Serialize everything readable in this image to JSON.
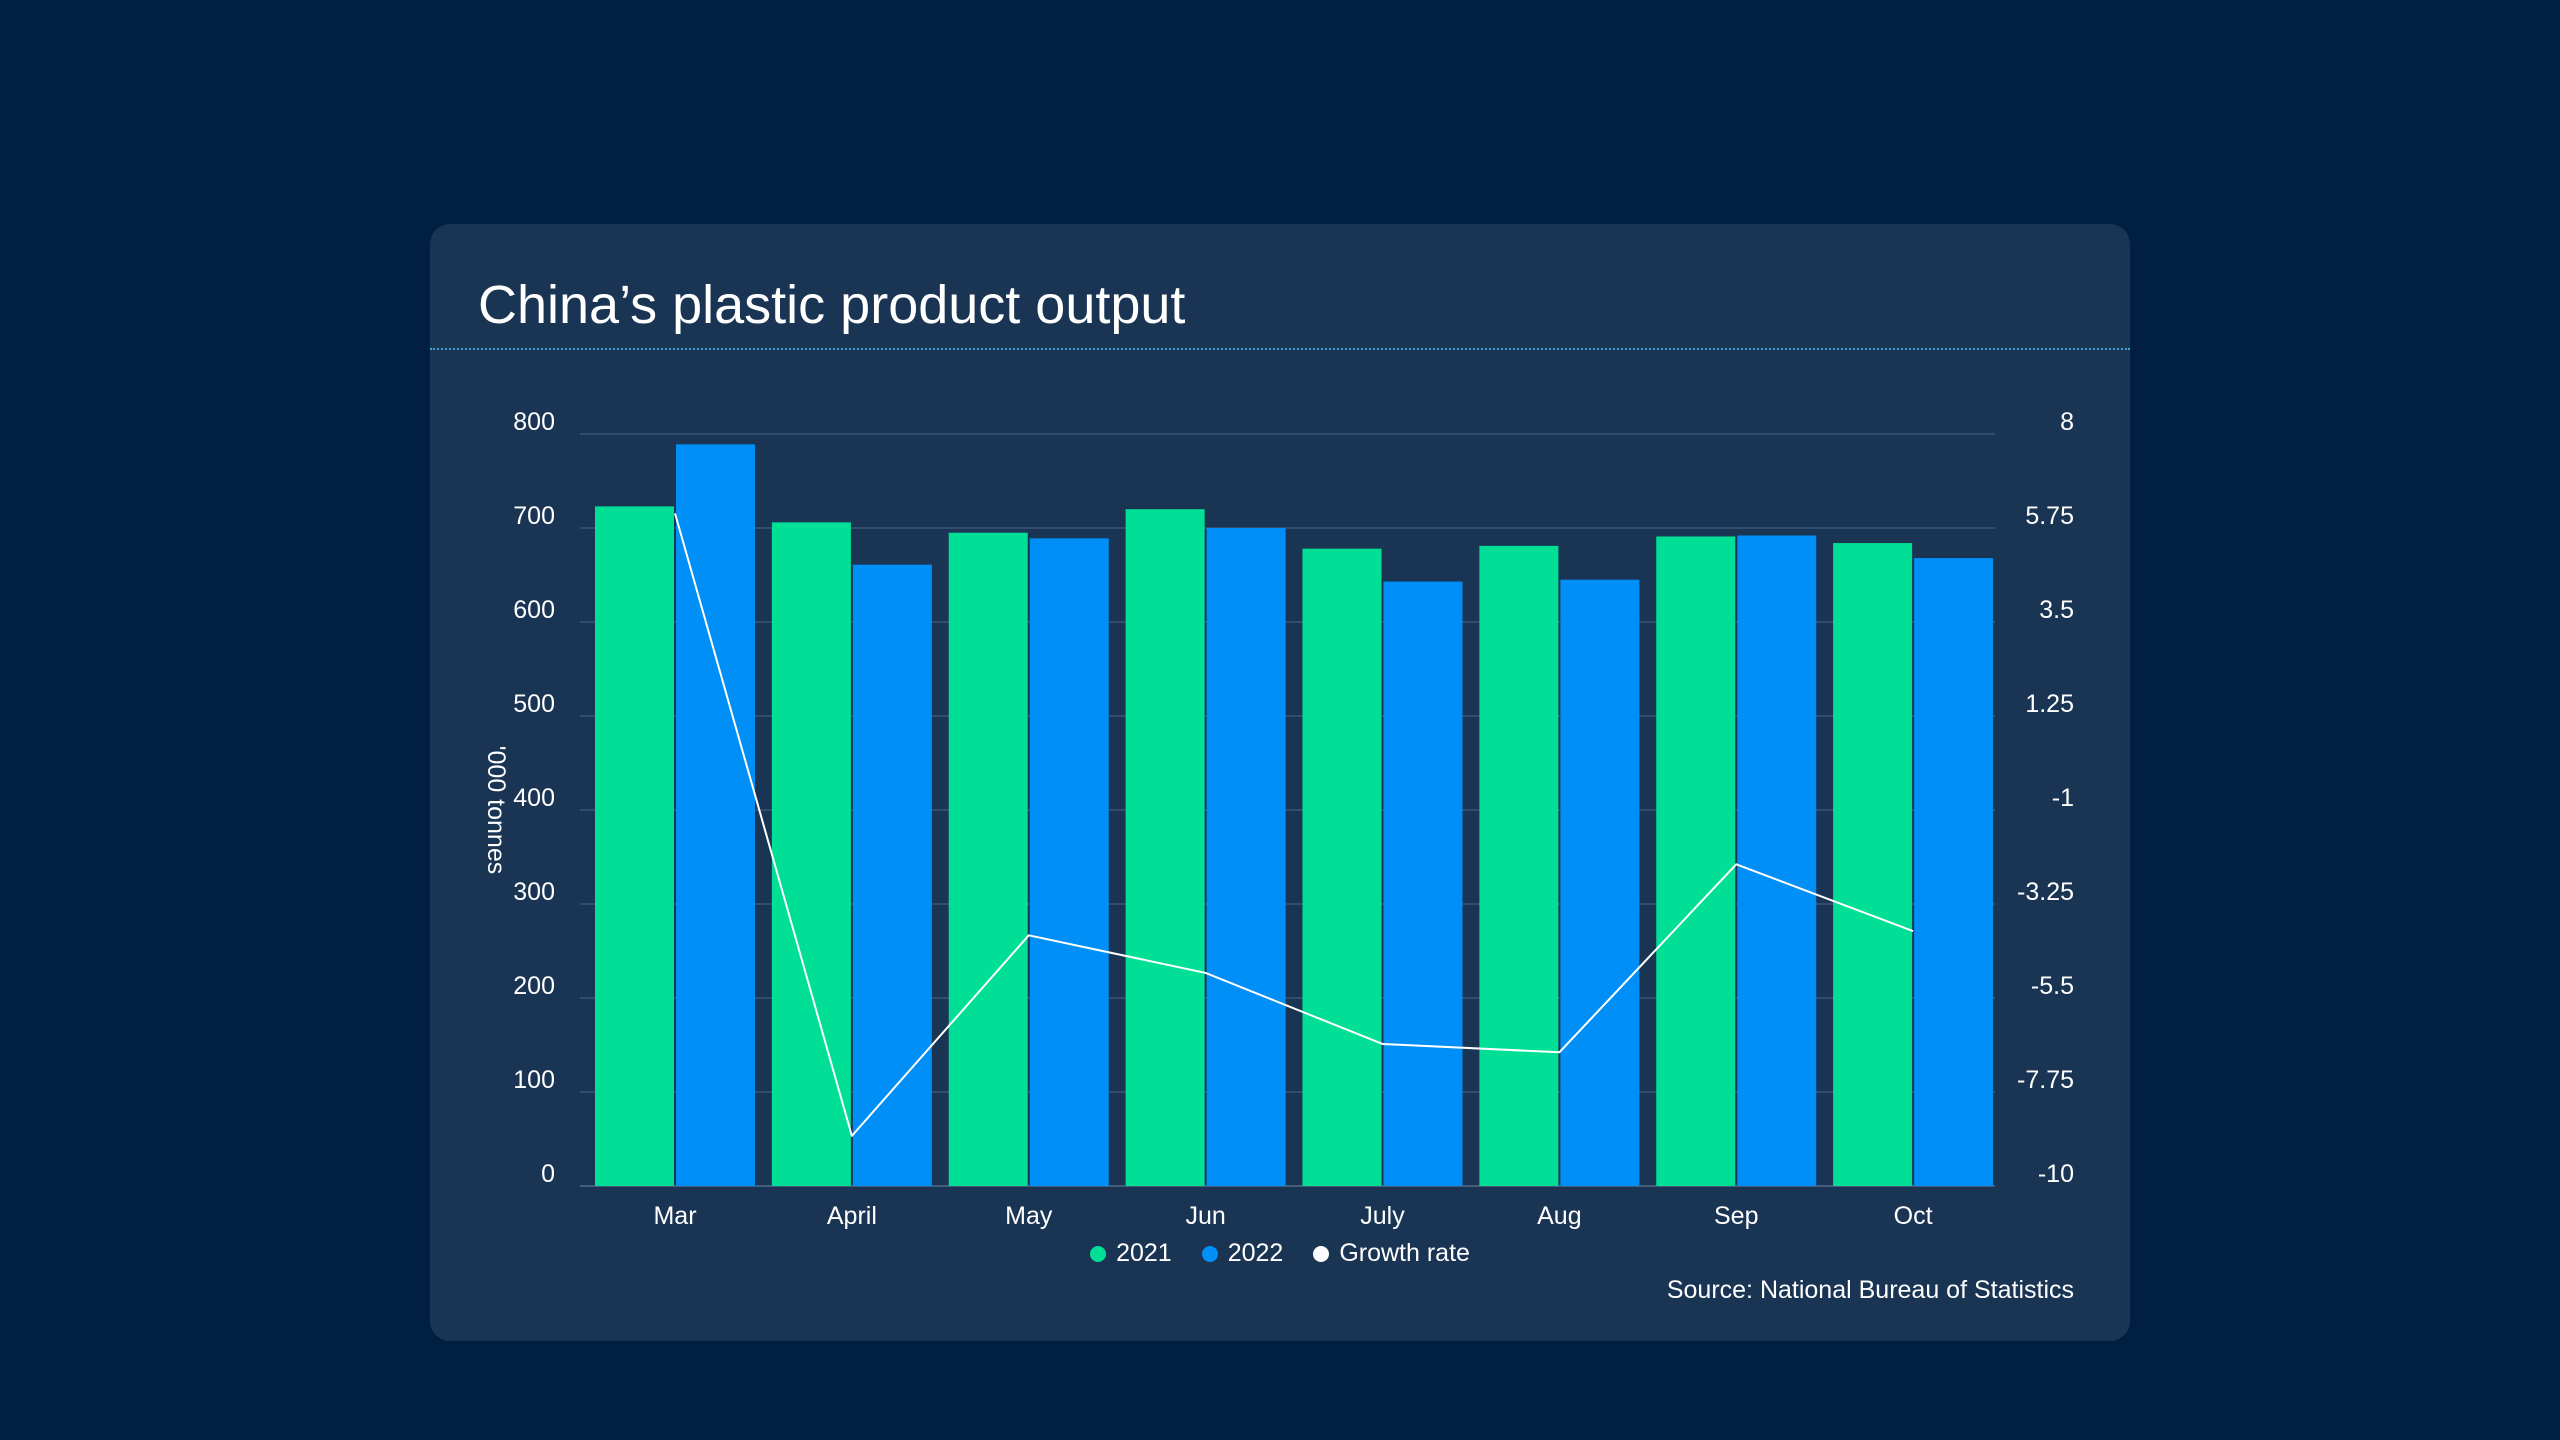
{
  "chart_data": {
    "type": "bar",
    "title": "China’s plastic product output",
    "categories": [
      "Mar",
      "April",
      "May",
      "Jun",
      "July",
      "Aug",
      "Sep",
      "Oct"
    ],
    "series": [
      {
        "name": "2021",
        "type": "bar",
        "axis": "left",
        "values": [
          723,
          706,
          695,
          720,
          678,
          681,
          691,
          684
        ]
      },
      {
        "name": "2022",
        "type": "bar",
        "axis": "left",
        "values": [
          789,
          661,
          689,
          700,
          643,
          645,
          692,
          668
        ]
      },
      {
        "name": "Growth rate",
        "type": "line",
        "axis": "right",
        "values": [
          6.1,
          -8.8,
          -4.0,
          -4.9,
          -6.6,
          -6.8,
          -2.3,
          -3.9
        ]
      }
    ],
    "ylabel": "'000 tonnes",
    "ylim": [
      0,
      800
    ],
    "y_ticks": [
      "0",
      "100",
      "200",
      "300",
      "400",
      "500",
      "600",
      "700",
      "800"
    ],
    "y2lim": [
      -10,
      8
    ],
    "y2_ticks": [
      "-10",
      "-7.75",
      "-5.5",
      "-3.25",
      "-1",
      "1.25",
      "3.5",
      "5.75",
      "8"
    ],
    "grid": true,
    "legend_position": "bottom-center",
    "colors": {
      "2021": "#00df95",
      "2022": "#008ff7",
      "Growth rate": "#ffffff"
    },
    "source": "Source: National Bureau of Statistics"
  }
}
